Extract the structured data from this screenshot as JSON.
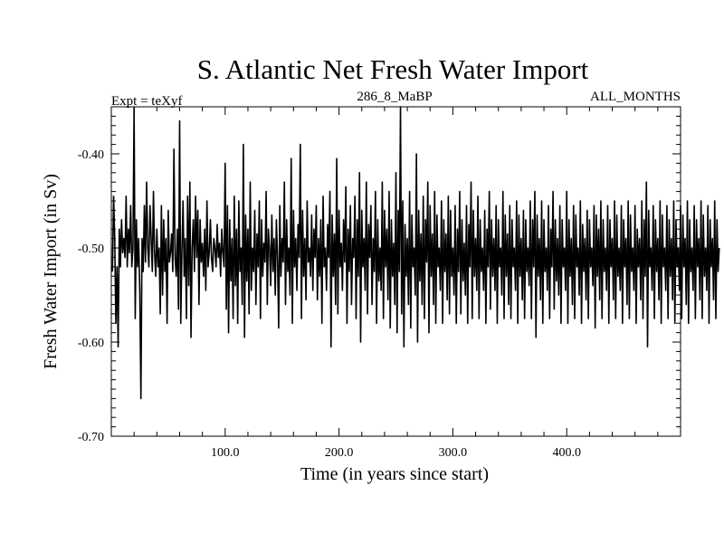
{
  "chart_data": {
    "type": "line",
    "title": "S. Atlantic Net Fresh Water Import",
    "subtitle_left": "Expt = teXyf",
    "subtitle_center": "286_8_MaBP",
    "subtitle_right": "ALL_MONTHS",
    "xlabel": "Time (in years since start)",
    "ylabel": "Fresh Water Import (in Sv)",
    "xlim": [
      0,
      500
    ],
    "ylim": [
      -0.7,
      -0.35
    ],
    "x_ticks": [
      "100.0",
      "200.0",
      "300.0",
      "400.0"
    ],
    "x_tick_values": [
      100,
      200,
      300,
      400
    ],
    "y_ticks": [
      "-0.40",
      "-0.50",
      "-0.60",
      "-0.70"
    ],
    "y_tick_values": [
      -0.4,
      -0.5,
      -0.6,
      -0.7
    ],
    "series": [
      {
        "x_start": 1,
        "x_step": 1,
        "values": [
          -0.525,
          -0.445,
          -0.49,
          -0.58,
          -0.52,
          -0.605,
          -0.48,
          -0.52,
          -0.47,
          -0.505,
          -0.49,
          -0.51,
          -0.445,
          -0.52,
          -0.48,
          -0.505,
          -0.455,
          -0.52,
          -0.5,
          -0.35,
          -0.575,
          -0.47,
          -0.52,
          -0.49,
          -0.545,
          -0.66,
          -0.49,
          -0.525,
          -0.455,
          -0.515,
          -0.43,
          -0.5,
          -0.52,
          -0.455,
          -0.49,
          -0.525,
          -0.44,
          -0.505,
          -0.53,
          -0.48,
          -0.52,
          -0.5,
          -0.57,
          -0.455,
          -0.55,
          -0.47,
          -0.525,
          -0.49,
          -0.58,
          -0.46,
          -0.515,
          -0.505,
          -0.485,
          -0.525,
          -0.395,
          -0.51,
          -0.53,
          -0.48,
          -0.565,
          -0.365,
          -0.58,
          -0.505,
          -0.45,
          -0.53,
          -0.49,
          -0.575,
          -0.445,
          -0.54,
          -0.43,
          -0.595,
          -0.5,
          -0.47,
          -0.525,
          -0.445,
          -0.51,
          -0.46,
          -0.56,
          -0.47,
          -0.515,
          -0.495,
          -0.53,
          -0.48,
          -0.545,
          -0.45,
          -0.52,
          -0.505,
          -0.47,
          -0.51,
          -0.525,
          -0.49,
          -0.5,
          -0.52,
          -0.475,
          -0.51,
          -0.495,
          -0.53,
          -0.48,
          -0.505,
          -0.52,
          -0.41,
          -0.565,
          -0.455,
          -0.59,
          -0.47,
          -0.535,
          -0.49,
          -0.575,
          -0.445,
          -0.54,
          -0.48,
          -0.58,
          -0.45,
          -0.525,
          -0.5,
          -0.56,
          -0.39,
          -0.595,
          -0.465,
          -0.535,
          -0.48,
          -0.57,
          -0.43,
          -0.545,
          -0.5,
          -0.525,
          -0.46,
          -0.56,
          -0.485,
          -0.52,
          -0.45,
          -0.575,
          -0.47,
          -0.53,
          -0.495,
          -0.515,
          -0.44,
          -0.56,
          -0.48,
          -0.5,
          -0.54,
          -0.465,
          -0.525,
          -0.49,
          -0.55,
          -0.47,
          -0.51,
          -0.585,
          -0.455,
          -0.53,
          -0.49,
          -0.515,
          -0.43,
          -0.56,
          -0.47,
          -0.525,
          -0.5,
          -0.55,
          -0.405,
          -0.58,
          -0.46,
          -0.52,
          -0.49,
          -0.545,
          -0.475,
          -0.51,
          -0.39,
          -0.575,
          -0.46,
          -0.53,
          -0.49,
          -0.555,
          -0.45,
          -0.515,
          -0.5,
          -0.53,
          -0.465,
          -0.545,
          -0.48,
          -0.51,
          -0.455,
          -0.555,
          -0.49,
          -0.53,
          -0.47,
          -0.58,
          -0.445,
          -0.52,
          -0.5,
          -0.545,
          -0.475,
          -0.51,
          -0.44,
          -0.605,
          -0.465,
          -0.53,
          -0.485,
          -0.56,
          -0.405,
          -0.57,
          -0.46,
          -0.52,
          -0.495,
          -0.545,
          -0.47,
          -0.515,
          -0.435,
          -0.58,
          -0.48,
          -0.525,
          -0.455,
          -0.56,
          -0.49,
          -0.51,
          -0.445,
          -0.575,
          -0.47,
          -0.53,
          -0.42,
          -0.6,
          -0.46,
          -0.52,
          -0.49,
          -0.545,
          -0.43,
          -0.57,
          -0.475,
          -0.51,
          -0.455,
          -0.56,
          -0.49,
          -0.525,
          -0.44,
          -0.58,
          -0.47,
          -0.535,
          -0.5,
          -0.545,
          -0.43,
          -0.575,
          -0.46,
          -0.52,
          -0.48,
          -0.555,
          -0.44,
          -0.585,
          -0.47,
          -0.53,
          -0.495,
          -0.56,
          -0.42,
          -0.59,
          -0.46,
          -0.525,
          -0.35,
          -0.57,
          -0.45,
          -0.605,
          -0.475,
          -0.53,
          -0.49,
          -0.56,
          -0.44,
          -0.585,
          -0.465,
          -0.52,
          -0.5,
          -0.55,
          -0.4,
          -0.6,
          -0.46,
          -0.535,
          -0.485,
          -0.56,
          -0.445,
          -0.575,
          -0.47,
          -0.515,
          -0.43,
          -0.59,
          -0.455,
          -0.53,
          -0.485,
          -0.56,
          -0.44,
          -0.58,
          -0.465,
          -0.52,
          -0.5,
          -0.545,
          -0.45,
          -0.58,
          -0.47,
          -0.525,
          -0.485,
          -0.555,
          -0.445,
          -0.57,
          -0.46,
          -0.53,
          -0.5,
          -0.55,
          -0.455,
          -0.58,
          -0.48,
          -0.525,
          -0.44,
          -0.57,
          -0.47,
          -0.535,
          -0.495,
          -0.55,
          -0.455,
          -0.58,
          -0.475,
          -0.52,
          -0.43,
          -0.575,
          -0.46,
          -0.53,
          -0.49,
          -0.545,
          -0.445,
          -0.575,
          -0.47,
          -0.525,
          -0.5,
          -0.545,
          -0.46,
          -0.58,
          -0.48,
          -0.52,
          -0.44,
          -0.565,
          -0.47,
          -0.53,
          -0.49,
          -0.545,
          -0.455,
          -0.58,
          -0.47,
          -0.52,
          -0.5,
          -0.55,
          -0.44,
          -0.575,
          -0.465,
          -0.53,
          -0.485,
          -0.56,
          -0.455,
          -0.575,
          -0.47,
          -0.52,
          -0.5,
          -0.545,
          -0.45,
          -0.58,
          -0.465,
          -0.53,
          -0.49,
          -0.555,
          -0.46,
          -0.575,
          -0.47,
          -0.525,
          -0.5,
          -0.54,
          -0.45,
          -0.575,
          -0.47,
          -0.52,
          -0.44,
          -0.595,
          -0.465,
          -0.53,
          -0.49,
          -0.555,
          -0.45,
          -0.58,
          -0.47,
          -0.525,
          -0.5,
          -0.545,
          -0.455,
          -0.575,
          -0.48,
          -0.52,
          -0.44,
          -0.565,
          -0.47,
          -0.535,
          -0.49,
          -0.55,
          -0.455,
          -0.58,
          -0.47,
          -0.52,
          -0.5,
          -0.545,
          -0.44,
          -0.58,
          -0.47,
          -0.53,
          -0.49,
          -0.56,
          -0.455,
          -0.575,
          -0.465,
          -0.52,
          -0.5,
          -0.55,
          -0.45,
          -0.58,
          -0.475,
          -0.525,
          -0.49,
          -0.555,
          -0.46,
          -0.575,
          -0.47,
          -0.52,
          -0.5,
          -0.54,
          -0.455,
          -0.585,
          -0.465,
          -0.53,
          -0.48,
          -0.555,
          -0.45,
          -0.575,
          -0.47,
          -0.525,
          -0.5,
          -0.545,
          -0.455,
          -0.58,
          -0.47,
          -0.52,
          -0.49,
          -0.555,
          -0.45,
          -0.575,
          -0.465,
          -0.53,
          -0.5,
          -0.545,
          -0.455,
          -0.58,
          -0.47,
          -0.52,
          -0.49,
          -0.56,
          -0.45,
          -0.575,
          -0.465,
          -0.525,
          -0.5,
          -0.545,
          -0.455,
          -0.58,
          -0.48,
          -0.52,
          -0.49,
          -0.555,
          -0.45,
          -0.575,
          -0.47,
          -0.53,
          -0.43,
          -0.605,
          -0.46,
          -0.52,
          -0.5,
          -0.545,
          -0.455,
          -0.575,
          -0.47,
          -0.525,
          -0.49,
          -0.555,
          -0.45,
          -0.58,
          -0.465,
          -0.52,
          -0.5,
          -0.545,
          -0.455,
          -0.575,
          -0.47,
          -0.53,
          -0.49,
          -0.555,
          -0.45,
          -0.58,
          -0.47,
          -0.52,
          -0.5,
          -0.545,
          -0.455,
          -0.575,
          -0.465,
          -0.52,
          -0.49,
          -0.56,
          -0.45,
          -0.58,
          -0.47,
          -0.525,
          -0.5,
          -0.545,
          -0.455,
          -0.575,
          -0.47,
          -0.52,
          -0.49,
          -0.555,
          -0.45,
          -0.575,
          -0.465,
          -0.53,
          -0.5,
          -0.545,
          -0.455,
          -0.58,
          -0.47,
          -0.52,
          -0.49,
          -0.555,
          -0.45,
          -0.575,
          -0.47,
          -0.525,
          -0.5
        ]
      }
    ]
  }
}
